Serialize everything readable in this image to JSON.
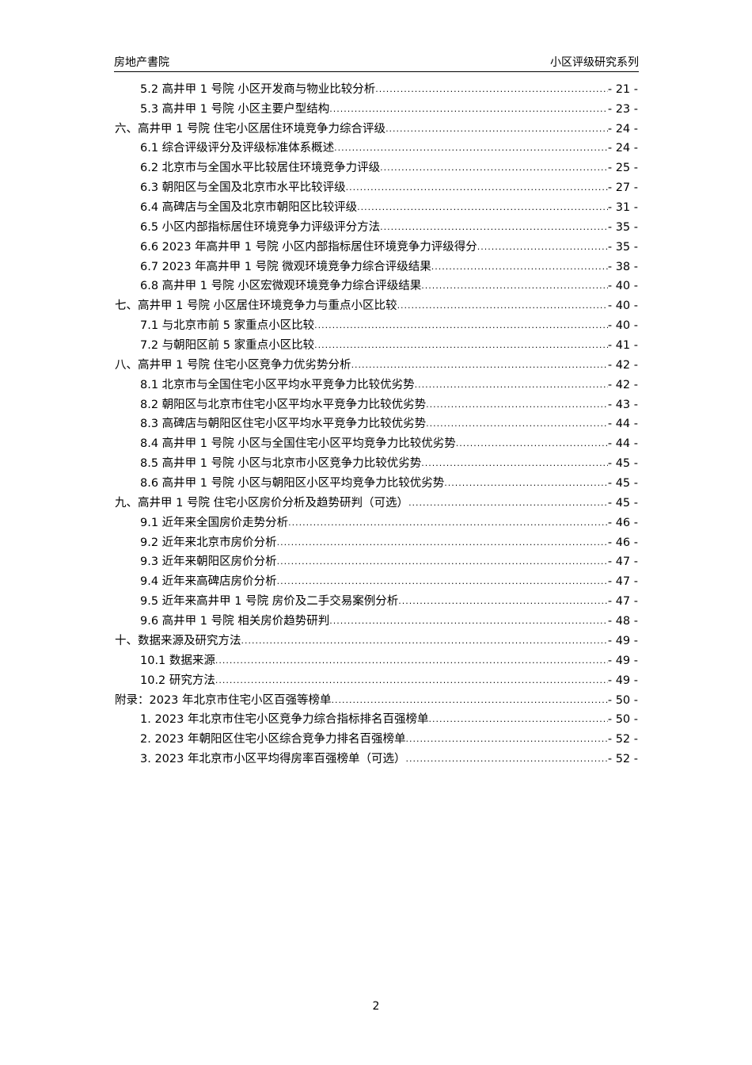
{
  "header": {
    "left": "房地产書院",
    "right": "小区评级研究系列"
  },
  "toc": [
    {
      "level": 2,
      "title": "5.2 高井甲 1 号院  小区开发商与物业比较分析",
      "page": "- 21 -"
    },
    {
      "level": 2,
      "title": "5.3 高井甲 1 号院  小区主要户型结构",
      "page": "- 23 -"
    },
    {
      "level": 1,
      "title": "六、高井甲 1 号院  住宅小区居住环境竞争力综合评级",
      "page": "- 24 -"
    },
    {
      "level": 2,
      "title": "6.1 综合评级评分及评级标准体系概述",
      "page": "- 24 -"
    },
    {
      "level": 2,
      "title": "6.2 北京市与全国水平比较居住环境竞争力评级",
      "page": "- 25 -"
    },
    {
      "level": 2,
      "title": "6.3 朝阳区与全国及北京市水平比较评级",
      "page": "- 27 -"
    },
    {
      "level": 2,
      "title": "6.4 高碑店与全国及北京市朝阳区比较评级",
      "page": "- 31 -"
    },
    {
      "level": 2,
      "title": "6.5 小区内部指标居住环境竞争力评级评分方法",
      "page": "- 35 -"
    },
    {
      "level": 2,
      "title": "6.6 2023 年高井甲 1 号院  小区内部指标居住环境竞争力评级得分",
      "page": "- 35 -"
    },
    {
      "level": 2,
      "title": "6.7 2023 年高井甲 1 号院  微观环境竞争力综合评级结果",
      "page": "- 38 -"
    },
    {
      "level": 2,
      "title": "6.8 高井甲 1 号院  小区宏微观环境竞争力综合评级结果",
      "page": "- 40 -"
    },
    {
      "level": 1,
      "title": "七、高井甲 1 号院  小区居住环境竞争力与重点小区比较",
      "page": "- 40 -"
    },
    {
      "level": 2,
      "title": "7.1 与北京市前 5 家重点小区比较",
      "page": "- 40 -"
    },
    {
      "level": 2,
      "title": "7.2 与朝阳区前 5 家重点小区比较",
      "page": "- 41 -"
    },
    {
      "level": 1,
      "title": "八、高井甲 1 号院  住宅小区竞争力优劣势分析",
      "page": "- 42 -"
    },
    {
      "level": 2,
      "title": "8.1 北京市与全国住宅小区平均水平竞争力比较优劣势",
      "page": "- 42 -"
    },
    {
      "level": 2,
      "title": "8.2 朝阳区与北京市住宅小区平均水平竞争力比较优劣势",
      "page": "- 43 -"
    },
    {
      "level": 2,
      "title": "8.3 高碑店与朝阳区住宅小区平均水平竞争力比较优劣势",
      "page": "- 44 -"
    },
    {
      "level": 2,
      "title": "8.4 高井甲 1 号院  小区与全国住宅小区平均竞争力比较优劣势",
      "page": "- 44 -"
    },
    {
      "level": 2,
      "title": "8.5 高井甲 1 号院  小区与北京市小区竞争力比较优劣势",
      "page": "- 45 -"
    },
    {
      "level": 2,
      "title": "8.6 高井甲 1 号院  小区与朝阳区小区平均竞争力比较优劣势",
      "page": "- 45 -"
    },
    {
      "level": 1,
      "title": "九、高井甲 1 号院  住宅小区房价分析及趋势研判（可选）",
      "page": "- 45 -"
    },
    {
      "level": 2,
      "title": "9.1 近年来全国房价走势分析",
      "page": "- 46 -"
    },
    {
      "level": 2,
      "title": "9.2 近年来北京市房价分析",
      "page": "- 46 -"
    },
    {
      "level": 2,
      "title": "9.3 近年来朝阳区房价分析",
      "page": "- 47 -"
    },
    {
      "level": 2,
      "title": "9.4 近年来高碑店房价分析",
      "page": "- 47 -"
    },
    {
      "level": 2,
      "title": "9.5 近年来高井甲 1 号院  房价及二手交易案例分析",
      "page": "- 47 -"
    },
    {
      "level": 2,
      "title": "9.6 高井甲 1 号院  相关房价趋势研判",
      "page": "- 48 -"
    },
    {
      "level": 1,
      "title": "十、数据来源及研究方法",
      "page": "- 49 -"
    },
    {
      "level": 2,
      "title": "10.1 数据来源",
      "page": "- 49 -"
    },
    {
      "level": 2,
      "title": "10.2 研究方法",
      "page": "- 49 -"
    },
    {
      "level": 1,
      "title": "附录：2023 年北京市住宅小区百强等榜单",
      "page": "- 50 -"
    },
    {
      "level": 2,
      "title": "1. 2023 年北京市住宅小区竞争力综合指标排名百强榜单",
      "page": "- 50 -"
    },
    {
      "level": 2,
      "title": "2. 2023 年朝阳区住宅小区综合竞争力排名百强榜单",
      "page": "- 52 -"
    },
    {
      "level": 2,
      "title": "3. 2023 年北京市小区平均得房率百强榜单（可选）",
      "page": "- 52 -"
    }
  ],
  "footer": {
    "page_number": "2"
  }
}
